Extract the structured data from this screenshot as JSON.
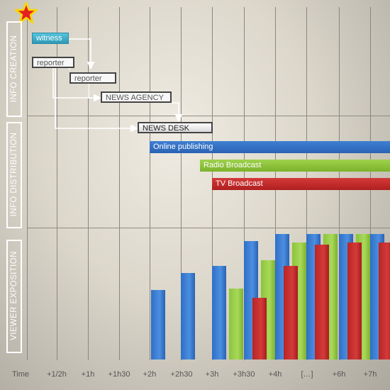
{
  "sections": {
    "info_creation": "INFO CREATION",
    "info_distribution": "INFO DISTRIBUTION",
    "viewer_exposition": "VIEWER EXPOSITION"
  },
  "nodes": {
    "witness": "witness",
    "reporter_1": "reporter",
    "reporter_2": "reporter",
    "news_agency": "NEWS AGENCY",
    "news_desk": "NEWS DESK"
  },
  "distribution": {
    "online": "Online publishing",
    "radio": "Radio Broadcast",
    "tv": "TV Broadcast"
  },
  "axis": {
    "time_label": "Time",
    "ticks": [
      "+1/2h",
      "+1h",
      "+1h30",
      "+2h",
      "+2h30",
      "+3h",
      "+3h30",
      "+4h",
      "[…]",
      "+6h",
      "+7h"
    ]
  },
  "colors": {
    "online": "#2f6fc7",
    "radio": "#8cc43a",
    "tv": "#c72a2a",
    "witness": "#3aaecb",
    "star": "#e62020",
    "star_outline": "#f5d800"
  },
  "chart_data": {
    "type": "bar",
    "categories": [
      "+2h",
      "+2h30",
      "+3h",
      "+3h30",
      "+4h",
      "[…]",
      "+6h",
      "+7h"
    ],
    "series": [
      {
        "name": "Online publishing",
        "values": [
          98,
          122,
          132,
          167,
          177,
          177,
          177,
          177
        ]
      },
      {
        "name": "Radio Broadcast",
        "values": [
          null,
          null,
          100,
          140,
          165,
          177,
          177,
          162
        ]
      },
      {
        "name": "TV Broadcast",
        "values": [
          null,
          null,
          null,
          87,
          132,
          162,
          165,
          165
        ]
      }
    ]
  }
}
